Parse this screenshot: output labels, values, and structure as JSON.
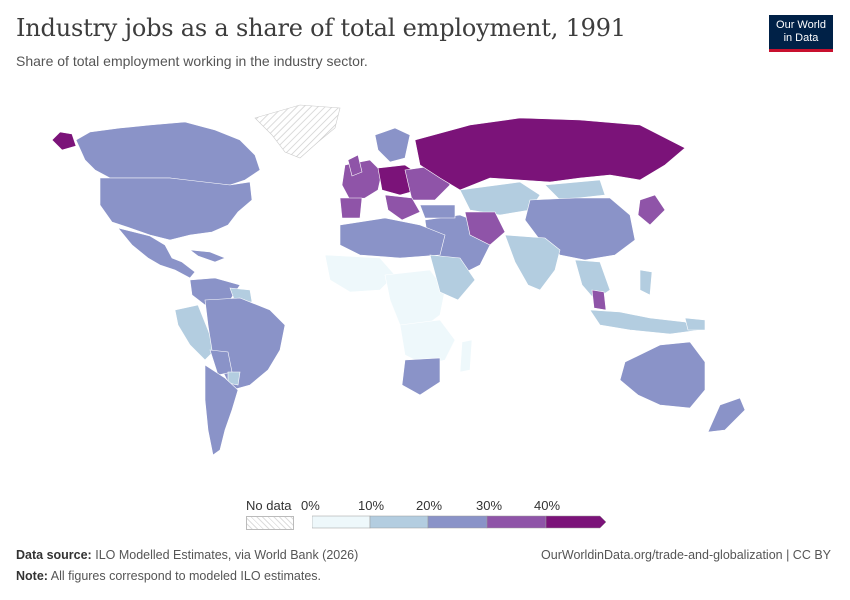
{
  "title": "Industry jobs as a share of total employment, 1991",
  "subtitle": "Share of total employment working in the industry sector.",
  "logo": {
    "line1": "Our World",
    "line2": "in Data"
  },
  "legend": {
    "no_data": "No data",
    "ticks": [
      "0%",
      "10%",
      "20%",
      "30%",
      "40%"
    ],
    "colors": [
      "#eef8fb",
      "#b3cde0",
      "#8a93c8",
      "#8f54a8",
      "#7b1379"
    ]
  },
  "footer": {
    "source_label": "Data source:",
    "source_text": "ILO Modelled Estimates, via World Bank (2026)",
    "note_label": "Note:",
    "note_text": "All figures correspond to modeled ILO estimates.",
    "url": "OurWorldinData.org/trade-and-globalization | CC BY"
  }
}
